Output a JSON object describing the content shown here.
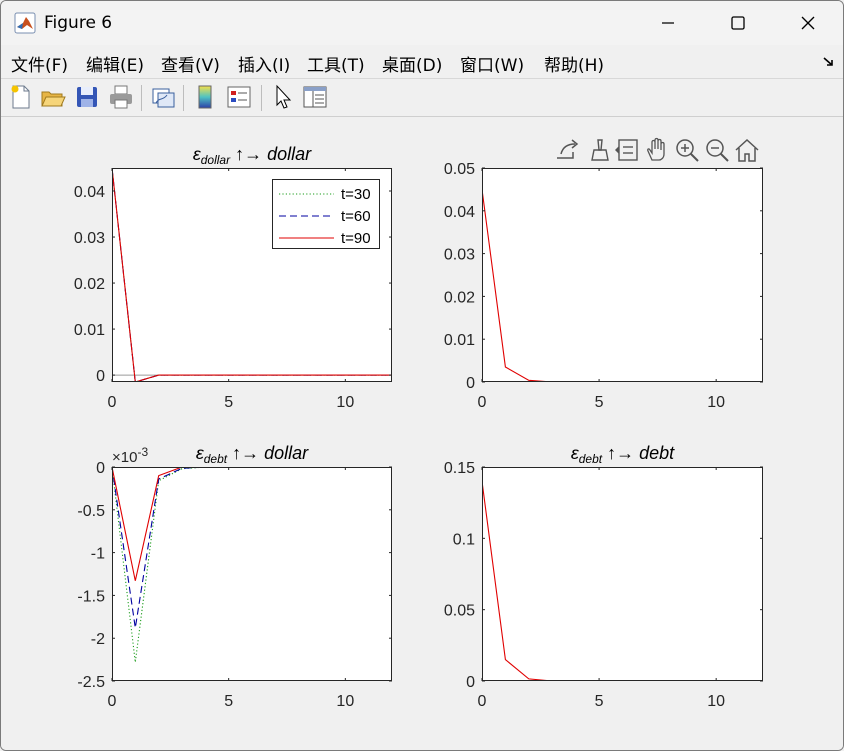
{
  "window": {
    "title": "Figure 6",
    "minimize_icon": "minimize-icon",
    "maximize_icon": "maximize-icon",
    "close_icon": "close-icon"
  },
  "menu": [
    {
      "label": "文件(F)"
    },
    {
      "label": "编辑(E)"
    },
    {
      "label": "查看(V)"
    },
    {
      "label": "插入(I)"
    },
    {
      "label": "工具(T)"
    },
    {
      "label": "桌面(D)"
    },
    {
      "label": "窗口(W)"
    },
    {
      "label": "帮助(H)"
    }
  ],
  "menu_overflow_icon": "dock-arrow-icon",
  "toolbar": [
    {
      "icon": "new-figure-icon"
    },
    {
      "icon": "open-file-icon"
    },
    {
      "icon": "save-icon"
    },
    {
      "icon": "print-icon"
    },
    {
      "icon": "link-plot-icon"
    },
    {
      "icon": "insert-colorbar-icon"
    },
    {
      "icon": "insert-legend-icon"
    },
    {
      "icon": "edit-plot-pointer-icon"
    },
    {
      "icon": "property-inspector-icon"
    }
  ],
  "axes_toolbar": [
    {
      "icon": "export-icon"
    },
    {
      "icon": "brush-icon"
    },
    {
      "icon": "data-tips-icon"
    },
    {
      "icon": "pan-hand-icon"
    },
    {
      "icon": "zoom-in-icon"
    },
    {
      "icon": "zoom-out-icon"
    },
    {
      "icon": "home-icon"
    }
  ],
  "colors": {
    "t30": "#1a9c1a",
    "t60": "#0000a0",
    "t90": "#e00000",
    "zero_line": "#9a9a9a"
  },
  "chart_data": [
    {
      "type": "line",
      "title": "εdollar ↑ → dollar",
      "title_parts": {
        "symbol": "ε",
        "sub": "dollar",
        "rest": "↑→  dollar"
      },
      "xlim": [
        0,
        12
      ],
      "ylim": [
        -0.0015,
        0.045
      ],
      "xticks": [
        0,
        5,
        10
      ],
      "yticks": [
        0,
        0.01,
        0.02,
        0.03,
        0.04
      ],
      "ytick_labels": [
        "0",
        "0.01",
        "0.02",
        "0.03",
        "0.04"
      ],
      "zero_line": true,
      "legend": {
        "position": "top-right",
        "entries": [
          "t=30",
          "t=60",
          "t=90"
        ]
      },
      "series": [
        {
          "name": "t=30",
          "style": "dotted",
          "x": [
            0,
            1,
            2,
            3,
            4,
            5,
            6,
            7,
            8,
            9,
            10,
            11,
            12
          ],
          "y": [
            0.045,
            -0.0015,
            0,
            0,
            0,
            0,
            0,
            0,
            0,
            0,
            0,
            0,
            0
          ]
        },
        {
          "name": "t=60",
          "style": "dashed",
          "x": [
            0,
            1,
            2,
            3,
            4,
            5,
            6,
            7,
            8,
            9,
            10,
            11,
            12
          ],
          "y": [
            0.045,
            -0.0015,
            0,
            0,
            0,
            0,
            0,
            0,
            0,
            0,
            0,
            0,
            0
          ]
        },
        {
          "name": "t=90",
          "style": "solid",
          "x": [
            0,
            1,
            2,
            3,
            4,
            5,
            6,
            7,
            8,
            9,
            10,
            11,
            12
          ],
          "y": [
            0.045,
            -0.0015,
            0,
            0,
            0,
            0,
            0,
            0,
            0,
            0,
            0,
            0,
            0
          ]
        }
      ]
    },
    {
      "type": "line",
      "title": "",
      "xlim": [
        0,
        12
      ],
      "ylim": [
        0,
        0.05
      ],
      "xticks": [
        0,
        5,
        10
      ],
      "yticks": [
        0,
        0.01,
        0.02,
        0.03,
        0.04,
        0.05
      ],
      "ytick_labels": [
        "0",
        "0.01",
        "0.02",
        "0.03",
        "0.04",
        "0.05"
      ],
      "series": [
        {
          "style": "solid",
          "x": [
            0,
            1,
            2,
            3,
            4,
            5,
            6,
            7,
            8,
            9,
            10,
            11,
            12
          ],
          "y": [
            0.045,
            0.0035,
            0.0004,
            0,
            0,
            0,
            0,
            0,
            0,
            0,
            0,
            0,
            0
          ]
        }
      ]
    },
    {
      "type": "line",
      "title": "εdebt ↑ → dollar",
      "title_parts": {
        "symbol": "ε",
        "sub": "debt",
        "rest": "↑→  dollar"
      },
      "exponent_label": "×10",
      "exponent_power": "-3",
      "xlim": [
        0,
        12
      ],
      "ylim": [
        -2.5,
        0
      ],
      "xticks": [
        0,
        5,
        10
      ],
      "yticks": [
        0,
        -0.5,
        -1,
        -1.5,
        -2,
        -2.5
      ],
      "ytick_labels": [
        "0",
        "-0.5",
        "-1",
        "-1.5",
        "-2",
        "-2.5"
      ],
      "series": [
        {
          "name": "t=30",
          "style": "dotted",
          "x": [
            0,
            1,
            2,
            3,
            4,
            5,
            6,
            7,
            8,
            9,
            10,
            11,
            12
          ],
          "y": [
            0,
            -2.28,
            -0.16,
            -0.02,
            0,
            0,
            0,
            0,
            0,
            0,
            0,
            0,
            0
          ]
        },
        {
          "name": "t=60",
          "style": "dashed",
          "x": [
            0,
            1,
            2,
            3,
            4,
            5,
            6,
            7,
            8,
            9,
            10,
            11,
            12
          ],
          "y": [
            0,
            -1.88,
            -0.14,
            -0.015,
            0,
            0,
            0,
            0,
            0,
            0,
            0,
            0,
            0
          ]
        },
        {
          "name": "t=90",
          "style": "solid",
          "x": [
            0,
            1,
            2,
            3,
            4,
            5,
            6,
            7,
            8,
            9,
            10,
            11,
            12
          ],
          "y": [
            0,
            -1.33,
            -0.1,
            0,
            0,
            0,
            0,
            0,
            0,
            0,
            0,
            0,
            0
          ]
        }
      ]
    },
    {
      "type": "line",
      "title": "εdebt ↑ → debt",
      "title_parts": {
        "symbol": "ε",
        "sub": "debt",
        "rest": "↑→  debt"
      },
      "xlim": [
        0,
        12
      ],
      "ylim": [
        0,
        0.15
      ],
      "xticks": [
        0,
        5,
        10
      ],
      "yticks": [
        0,
        0.05,
        0.1,
        0.15
      ],
      "ytick_labels": [
        "0",
        "0.05",
        "0.1",
        "0.15"
      ],
      "series": [
        {
          "style": "solid",
          "x": [
            0,
            1,
            2,
            3,
            4,
            5,
            6,
            7,
            8,
            9,
            10,
            11,
            12
          ],
          "y": [
            0.14,
            0.015,
            0.0015,
            0,
            0,
            0,
            0,
            0,
            0,
            0,
            0,
            0,
            0
          ]
        }
      ]
    }
  ]
}
